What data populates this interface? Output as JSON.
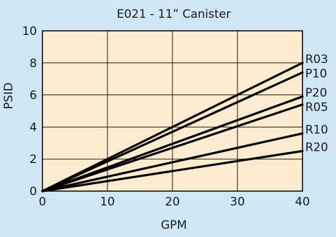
{
  "chart_data": {
    "type": "line",
    "title": "E021 - 11” Canister",
    "xlabel": "GPM",
    "ylabel": "PSID",
    "xlim": [
      0,
      40
    ],
    "ylim": [
      0,
      10
    ],
    "x_ticks": [
      0,
      10,
      20,
      30,
      40
    ],
    "y_ticks": [
      0,
      2,
      4,
      6,
      8,
      10
    ],
    "grid": true,
    "legend": "line-end labels on right",
    "series": [
      {
        "name": "R03",
        "x": [
          0,
          40
        ],
        "y": [
          0,
          8.0
        ]
      },
      {
        "name": "P10",
        "x": [
          0,
          40
        ],
        "y": [
          0,
          7.4
        ]
      },
      {
        "name": "P20",
        "x": [
          0,
          40
        ],
        "y": [
          0,
          5.9
        ]
      },
      {
        "name": "R05",
        "x": [
          0,
          40
        ],
        "y": [
          0,
          5.4
        ]
      },
      {
        "name": "R10",
        "x": [
          0,
          40
        ],
        "y": [
          0,
          3.6
        ]
      },
      {
        "name": "R20",
        "x": [
          0,
          40
        ],
        "y": [
          0,
          2.5
        ]
      }
    ]
  },
  "colors": {
    "page_background": "#cfe6f5",
    "plot_background": "#fdebd0",
    "line": "#000000",
    "grid": "#000000"
  }
}
